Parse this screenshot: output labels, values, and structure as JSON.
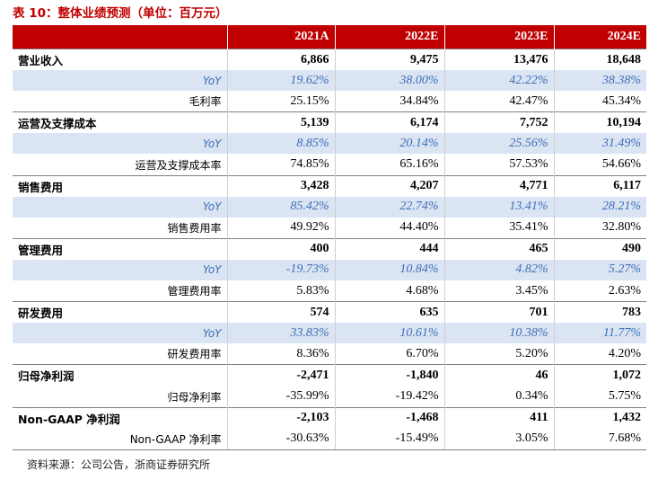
{
  "title": "表 10：整体业绩预测（单位：百万元）",
  "headers": [
    "",
    "2021A",
    "2022E",
    "2023E",
    "2024E"
  ],
  "rows": [
    {
      "type": "main",
      "label": "营业收入",
      "values": [
        "6,866",
        "9,475",
        "13,476",
        "18,648"
      ]
    },
    {
      "type": "yoy",
      "label": "YoY",
      "values": [
        "19.62%",
        "38.00%",
        "42.22%",
        "38.38%"
      ]
    },
    {
      "type": "rate",
      "label": "毛利率",
      "values": [
        "25.15%",
        "34.84%",
        "42.47%",
        "45.34%"
      ]
    },
    {
      "type": "main",
      "label": "运营及支撑成本",
      "values": [
        "5,139",
        "6,174",
        "7,752",
        "10,194"
      ]
    },
    {
      "type": "yoy",
      "label": "YoY",
      "values": [
        "8.85%",
        "20.14%",
        "25.56%",
        "31.49%"
      ]
    },
    {
      "type": "rate",
      "label": "运营及支撑成本率",
      "values": [
        "74.85%",
        "65.16%",
        "57.53%",
        "54.66%"
      ]
    },
    {
      "type": "main",
      "label": "销售费用",
      "values": [
        "3,428",
        "4,207",
        "4,771",
        "6,117"
      ]
    },
    {
      "type": "yoy",
      "label": "YoY",
      "values": [
        "85.42%",
        "22.74%",
        "13.41%",
        "28.21%"
      ]
    },
    {
      "type": "rate",
      "label": "销售费用率",
      "values": [
        "49.92%",
        "44.40%",
        "35.41%",
        "32.80%"
      ]
    },
    {
      "type": "main",
      "label": "管理费用",
      "values": [
        "400",
        "444",
        "465",
        "490"
      ]
    },
    {
      "type": "yoy",
      "label": "YoY",
      "values": [
        "-19.73%",
        "10.84%",
        "4.82%",
        "5.27%"
      ]
    },
    {
      "type": "rate",
      "label": "管理费用率",
      "values": [
        "5.83%",
        "4.68%",
        "3.45%",
        "2.63%"
      ]
    },
    {
      "type": "main",
      "label": "研发费用",
      "values": [
        "574",
        "635",
        "701",
        "783"
      ]
    },
    {
      "type": "yoy",
      "label": "YoY",
      "values": [
        "33.83%",
        "10.61%",
        "10.38%",
        "11.77%"
      ]
    },
    {
      "type": "rate",
      "label": "研发费用率",
      "values": [
        "8.36%",
        "6.70%",
        "5.20%",
        "4.20%"
      ]
    },
    {
      "type": "main",
      "label": "归母净利润",
      "values": [
        "-2,471",
        "-1,840",
        "46",
        "1,072"
      ]
    },
    {
      "type": "rate",
      "label": "归母净利率",
      "values": [
        "-35.99%",
        "-19.42%",
        "0.34%",
        "5.75%"
      ]
    },
    {
      "type": "main",
      "label": "Non-GAAP 净利润",
      "values": [
        "-2,103",
        "-1,468",
        "411",
        "1,432"
      ]
    },
    {
      "type": "rate",
      "label": "Non-GAAP 净利率",
      "values": [
        "-30.63%",
        "-15.49%",
        "3.05%",
        "7.68%"
      ]
    }
  ],
  "source": "资料来源：公司公告，浙商证券研究所",
  "colors": {
    "header_bg": "#c00000",
    "yoy_bg": "#dbe4f3",
    "yoy_text": "#3a6fb7",
    "title": "#c00000"
  }
}
